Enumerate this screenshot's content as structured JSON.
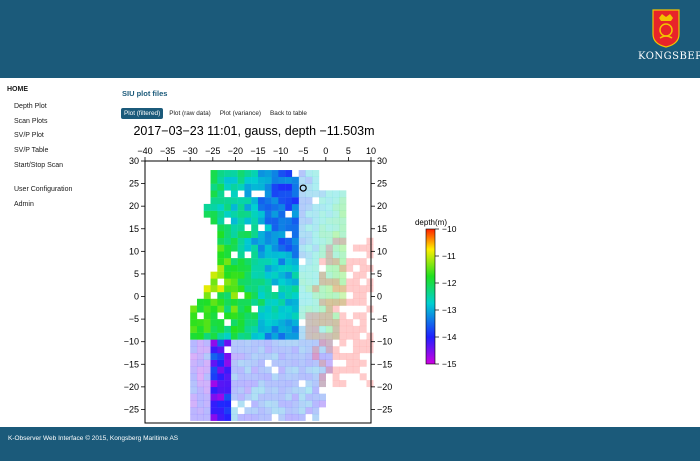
{
  "header": {
    "brand": "KONGSBERG",
    "logo_icon": "kongsberg-crest-icon"
  },
  "nav": [
    {
      "label": "HOME",
      "key": "home"
    },
    {
      "label": "Depth Plot",
      "key": "depth-plot"
    },
    {
      "label": "Scan Plots",
      "key": "scan-plots"
    },
    {
      "label": "SV/P Plot",
      "key": "svp-plot"
    },
    {
      "label": "SV/P Table",
      "key": "svp-table"
    },
    {
      "label": "Start/Stop Scan",
      "key": "start-stop-scan"
    },
    {
      "label": "User Configuration",
      "key": "user-configuration"
    },
    {
      "label": "Admin",
      "key": "admin"
    }
  ],
  "section_title": "SIU plot files",
  "tabs": [
    {
      "label": "Plot (filtered)",
      "active": true
    },
    {
      "label": "Plot (raw data)",
      "active": false
    },
    {
      "label": "Plot (variance)",
      "active": false
    },
    {
      "label": "Back to table",
      "active": false
    }
  ],
  "chart_data": {
    "type": "heatmap",
    "title": "2017−03−23 11:01, gauss, depth −11.503m",
    "x_ticks": [
      "−40",
      "−35",
      "−30",
      "−25",
      "−20",
      "−15",
      "−10",
      "−5",
      "0",
      "5",
      "10"
    ],
    "y_ticks": [
      "30",
      "25",
      "20",
      "15",
      "10",
      "5",
      "0",
      "−5",
      "−10",
      "−15",
      "−20",
      "−25"
    ],
    "xlim": [
      -40,
      10
    ],
    "ylim": [
      -28,
      30
    ],
    "marker": {
      "x": -5,
      "y": 24
    },
    "colorbar": {
      "label": "depth(m)",
      "ticks": [
        "−10",
        "−11",
        "−12",
        "−13",
        "−14",
        "−15"
      ],
      "range": [
        -15,
        -10
      ],
      "colors": [
        "#d000e0",
        "#2020ff",
        "#00d0d0",
        "#20e020",
        "#ffee00",
        "#ff2000"
      ]
    }
  },
  "footer": {
    "text": "K-Observer Web Interface © 2015, Kongsberg Maritime AS"
  }
}
